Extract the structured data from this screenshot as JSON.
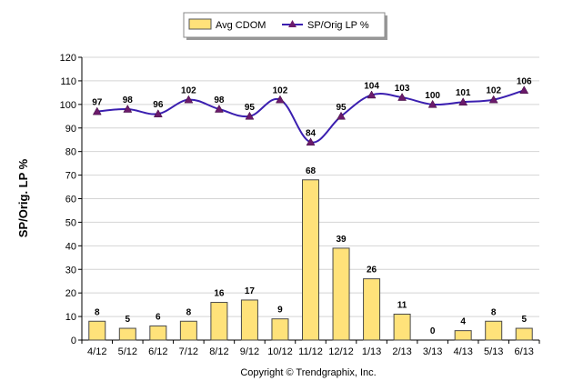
{
  "chart_data": {
    "type": "bar",
    "categories": [
      "4/12",
      "5/12",
      "6/12",
      "7/12",
      "8/12",
      "9/12",
      "10/12",
      "11/12",
      "12/12",
      "1/13",
      "2/13",
      "3/13",
      "4/13",
      "5/13",
      "6/13"
    ],
    "series": [
      {
        "name": "Avg CDOM",
        "type": "bar",
        "values": [
          8,
          5,
          6,
          8,
          16,
          17,
          9,
          68,
          39,
          26,
          11,
          0,
          4,
          8,
          5
        ],
        "color": "#FFE27A"
      },
      {
        "name": "SP/Orig LP %",
        "type": "line",
        "values": [
          97,
          98,
          96,
          102,
          98,
          95,
          102,
          84,
          95,
          104,
          103,
          100,
          101,
          102,
          106
        ],
        "color": "#3B1FB0"
      }
    ],
    "ylabel": "SP/Orig. LP %",
    "xlabel": "",
    "ylim": [
      0,
      120
    ],
    "yticks": [
      0,
      10,
      20,
      30,
      40,
      50,
      60,
      70,
      80,
      90,
      100,
      110,
      120
    ],
    "grid": true,
    "legend": "top-center"
  },
  "footer": {
    "copyright": "Copyright © Trendgraphix, Inc."
  }
}
